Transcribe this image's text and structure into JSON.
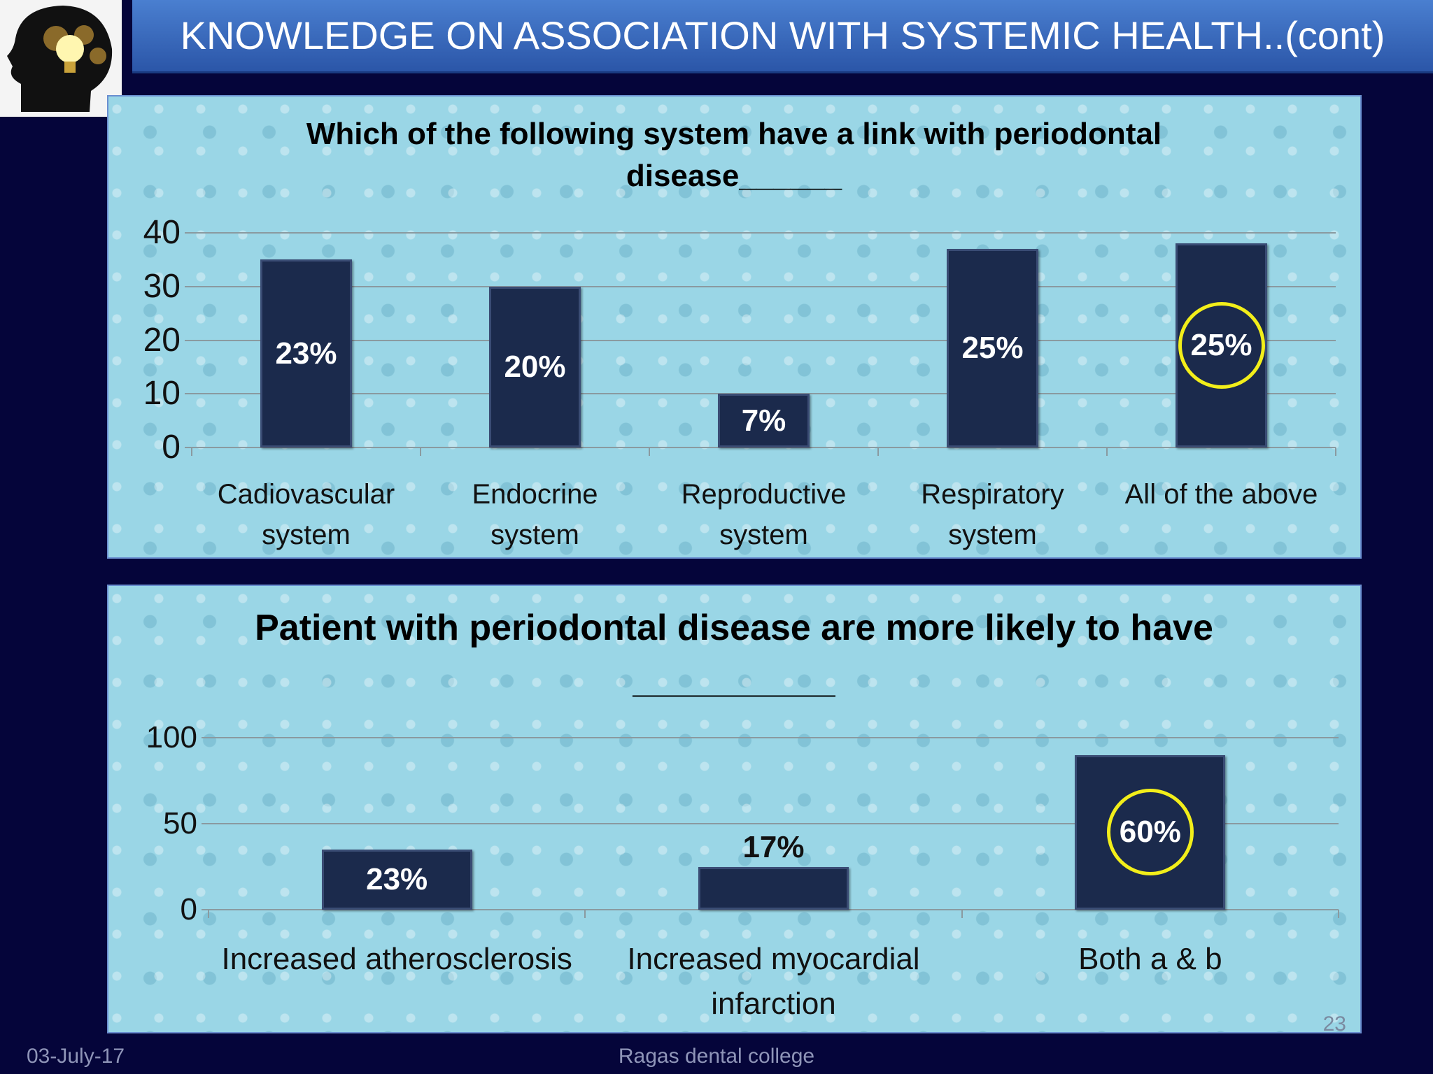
{
  "header": {
    "title": "KNOWLEDGE ON ASSOCIATION WITH SYSTEMIC HEALTH..(cont)"
  },
  "chart_data": [
    {
      "type": "bar",
      "title": "Which of the following system have a link with periodontal disease______",
      "categories": [
        "Cadiovascular system",
        "Endocrine system",
        "Reproductive system",
        "Respiratory system",
        "All of the above"
      ],
      "values": [
        35,
        30,
        10,
        37,
        38
      ],
      "data_labels": [
        "23%",
        "20%",
        "7%",
        "25%",
        "25%"
      ],
      "highlight": 4,
      "color": "#1b2a4c",
      "ylim": [
        0,
        40
      ],
      "yticks": [
        0,
        10,
        20,
        30,
        40
      ],
      "grid": true
    },
    {
      "type": "bar",
      "title": "Patient with periodontal disease are more likely to have __________",
      "categories": [
        "Increased atherosclerosis",
        "Increased myocardial infarction",
        "Both a & b"
      ],
      "values": [
        35,
        25,
        90
      ],
      "data_labels": [
        "23%",
        "17%",
        "60%"
      ],
      "highlight": 2,
      "color": "#1b2a4c",
      "ylim": [
        0,
        100
      ],
      "yticks": [
        0,
        50,
        100
      ],
      "grid": true
    }
  ],
  "footer": {
    "date": "03-July-17",
    "source": "Ragas dental college",
    "slide_number": "23"
  }
}
